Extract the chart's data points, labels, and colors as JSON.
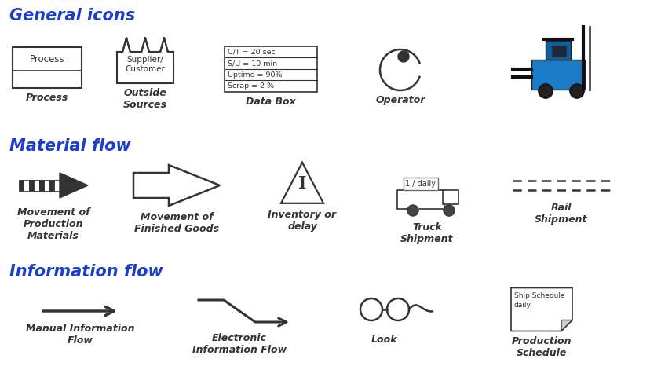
{
  "title_general": "General icons",
  "title_material": "Material flow",
  "title_info": "Information flow",
  "title_color": "#1a3ec8",
  "title_fontsize": 15,
  "label_fontsize": 9,
  "background_color": "#ffffff",
  "label_color": "#1a1a1a",
  "symbol_color": "#333333",
  "blue_forklift": "#1a7cc9",
  "labels_general": [
    "Process",
    "Outside\nSources",
    "Data Box",
    "Operator"
  ],
  "labels_material": [
    "Movement of\nProduction\nMaterials",
    "Movement of\nFinished Goods",
    "Inventory or\ndelay",
    "Truck\nShipment",
    "Rail\nShipment"
  ],
  "labels_info": [
    "Manual Information\nFlow",
    "Electronic\nInformation Flow",
    "Look",
    "Production\nSchedule"
  ],
  "databox_lines": [
    "C/T = 20 sec",
    "S/U = 10 min",
    "Uptime = 90%",
    "Scrap = 2 %"
  ],
  "truck_label": "1 / daily"
}
